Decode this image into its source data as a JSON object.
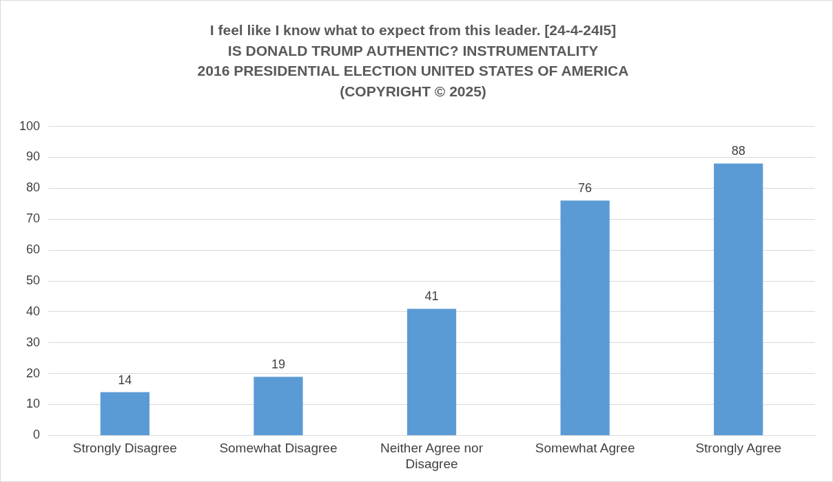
{
  "chart_data": {
    "type": "bar",
    "title": "I feel like I know what to expect from this leader. [24-4-24I5]\nIS DONALD TRUMP AUTHENTIC? INSTRUMENTALITY\n2016 PRESIDENTIAL ELECTION UNITED STATES OF AMERICA\n(COPYRIGHT © 2025)",
    "categories": [
      "Strongly Disagree",
      "Somewhat Disagree",
      "Neither Agree nor Disagree",
      "Somewhat Agree",
      "Strongly Agree"
    ],
    "values": [
      14,
      19,
      41,
      76,
      88
    ],
    "color": "#5b9bd5",
    "ylim": [
      0,
      100
    ],
    "yticks": [
      0,
      10,
      20,
      30,
      40,
      50,
      60,
      70,
      80,
      90,
      100
    ],
    "grid": "y",
    "legend": false,
    "data_labels": true
  }
}
